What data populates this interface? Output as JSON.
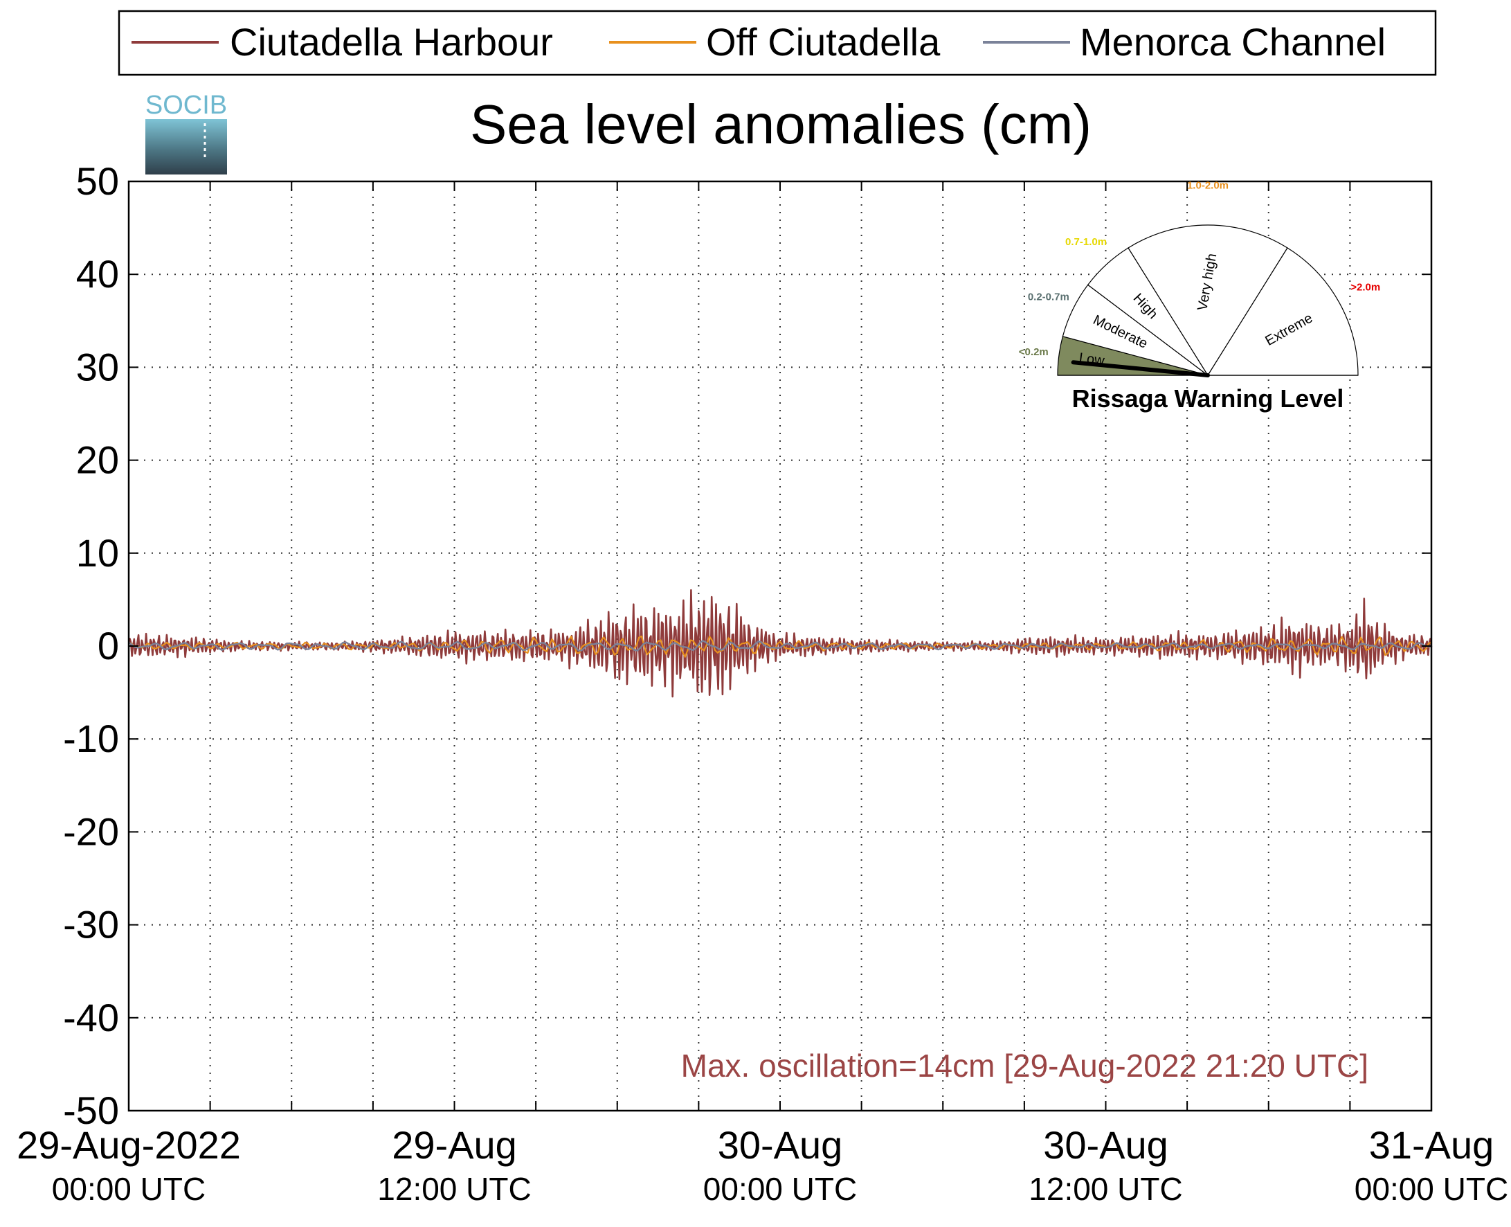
{
  "chart_data": {
    "type": "line",
    "title": "Sea level anomalies (cm)",
    "logo_text": "SOCIB",
    "ylim": [
      -50,
      50
    ],
    "yticks": [
      -50,
      -40,
      -30,
      -20,
      -10,
      0,
      10,
      20,
      30,
      40,
      50
    ],
    "xrange_hours": [
      0,
      48
    ],
    "xticks": [
      {
        "hour": 0,
        "line1": "29-Aug-2022",
        "line2": "00:00 UTC"
      },
      {
        "hour": 12,
        "line1": "29-Aug",
        "line2": "12:00 UTC"
      },
      {
        "hour": 24,
        "line1": "30-Aug",
        "line2": "00:00 UTC"
      },
      {
        "hour": 36,
        "line1": "30-Aug",
        "line2": "12:00 UTC"
      },
      {
        "hour": 48,
        "line1": "31-Aug",
        "line2": "00:00 UTC"
      }
    ],
    "grid": true,
    "legend_position": "top",
    "series": [
      {
        "name": "Ciutadella Harbour",
        "color": "#8f3b3b",
        "envelope": [
          [
            0,
            1.5
          ],
          [
            2,
            1.2
          ],
          [
            4,
            0.6
          ],
          [
            6,
            0.5
          ],
          [
            8,
            0.5
          ],
          [
            10,
            1
          ],
          [
            12,
            1.8
          ],
          [
            14,
            1.8
          ],
          [
            16,
            2
          ],
          [
            17,
            3
          ],
          [
            18,
            4.5
          ],
          [
            19.5,
            5
          ],
          [
            20.5,
            5.5
          ],
          [
            21.3,
            7
          ],
          [
            22,
            6
          ],
          [
            23,
            3
          ],
          [
            24,
            1.5
          ],
          [
            26,
            1
          ],
          [
            28,
            0.7
          ],
          [
            30,
            0.5
          ],
          [
            32,
            0.6
          ],
          [
            33,
            1
          ],
          [
            34,
            1.2
          ],
          [
            36,
            1
          ],
          [
            37,
            1.2
          ],
          [
            38,
            1.5
          ],
          [
            40,
            1.5
          ],
          [
            42,
            2.5
          ],
          [
            43,
            3.5
          ],
          [
            44,
            2.5
          ],
          [
            45,
            3
          ],
          [
            45.5,
            5.5
          ],
          [
            46,
            3
          ],
          [
            47,
            1.5
          ],
          [
            48,
            1.2
          ]
        ]
      },
      {
        "name": "Off Ciutadella",
        "color": "#e8901e",
        "envelope": [
          [
            0,
            0.4
          ],
          [
            10,
            0.4
          ],
          [
            14,
            0.9
          ],
          [
            18,
            1.2
          ],
          [
            22,
            1.1
          ],
          [
            24,
            0.6
          ],
          [
            30,
            0.3
          ],
          [
            36,
            0.4
          ],
          [
            42,
            0.8
          ],
          [
            46,
            1.2
          ],
          [
            48,
            0.5
          ]
        ]
      },
      {
        "name": "Menorca Channel",
        "color": "#7a8299",
        "envelope": [
          [
            0,
            0.4
          ],
          [
            18,
            0.5
          ],
          [
            22,
            0.6
          ],
          [
            24,
            0.4
          ],
          [
            36,
            0.3
          ],
          [
            48,
            0.4
          ]
        ]
      }
    ],
    "annotation": {
      "text": "Max. oscillation=14cm [29-Aug-2022 21:20 UTC]",
      "color": "#9b4545"
    },
    "gauge": {
      "title": "Rissaga Warning Level",
      "current_level": "Low",
      "needle_color": "#000000",
      "sectors": [
        {
          "label": "Low",
          "range": "<0.2m",
          "range_color": "#6b7a4a",
          "fill": "#7f8a5e"
        },
        {
          "label": "Moderate",
          "range": "0.2-0.7m",
          "range_color": "#5a7070",
          "fill": "#ffffff"
        },
        {
          "label": "High",
          "range": "0.7-1.0m",
          "range_color": "#e6d800",
          "fill": "#ffffff"
        },
        {
          "label": "Very high",
          "range": "1.0-2.0m",
          "range_color": "#e8901e",
          "fill": "#ffffff"
        },
        {
          "label": "Extreme",
          "range": ">2.0m",
          "range_color": "#e60000",
          "fill": "#ffffff"
        }
      ]
    }
  }
}
